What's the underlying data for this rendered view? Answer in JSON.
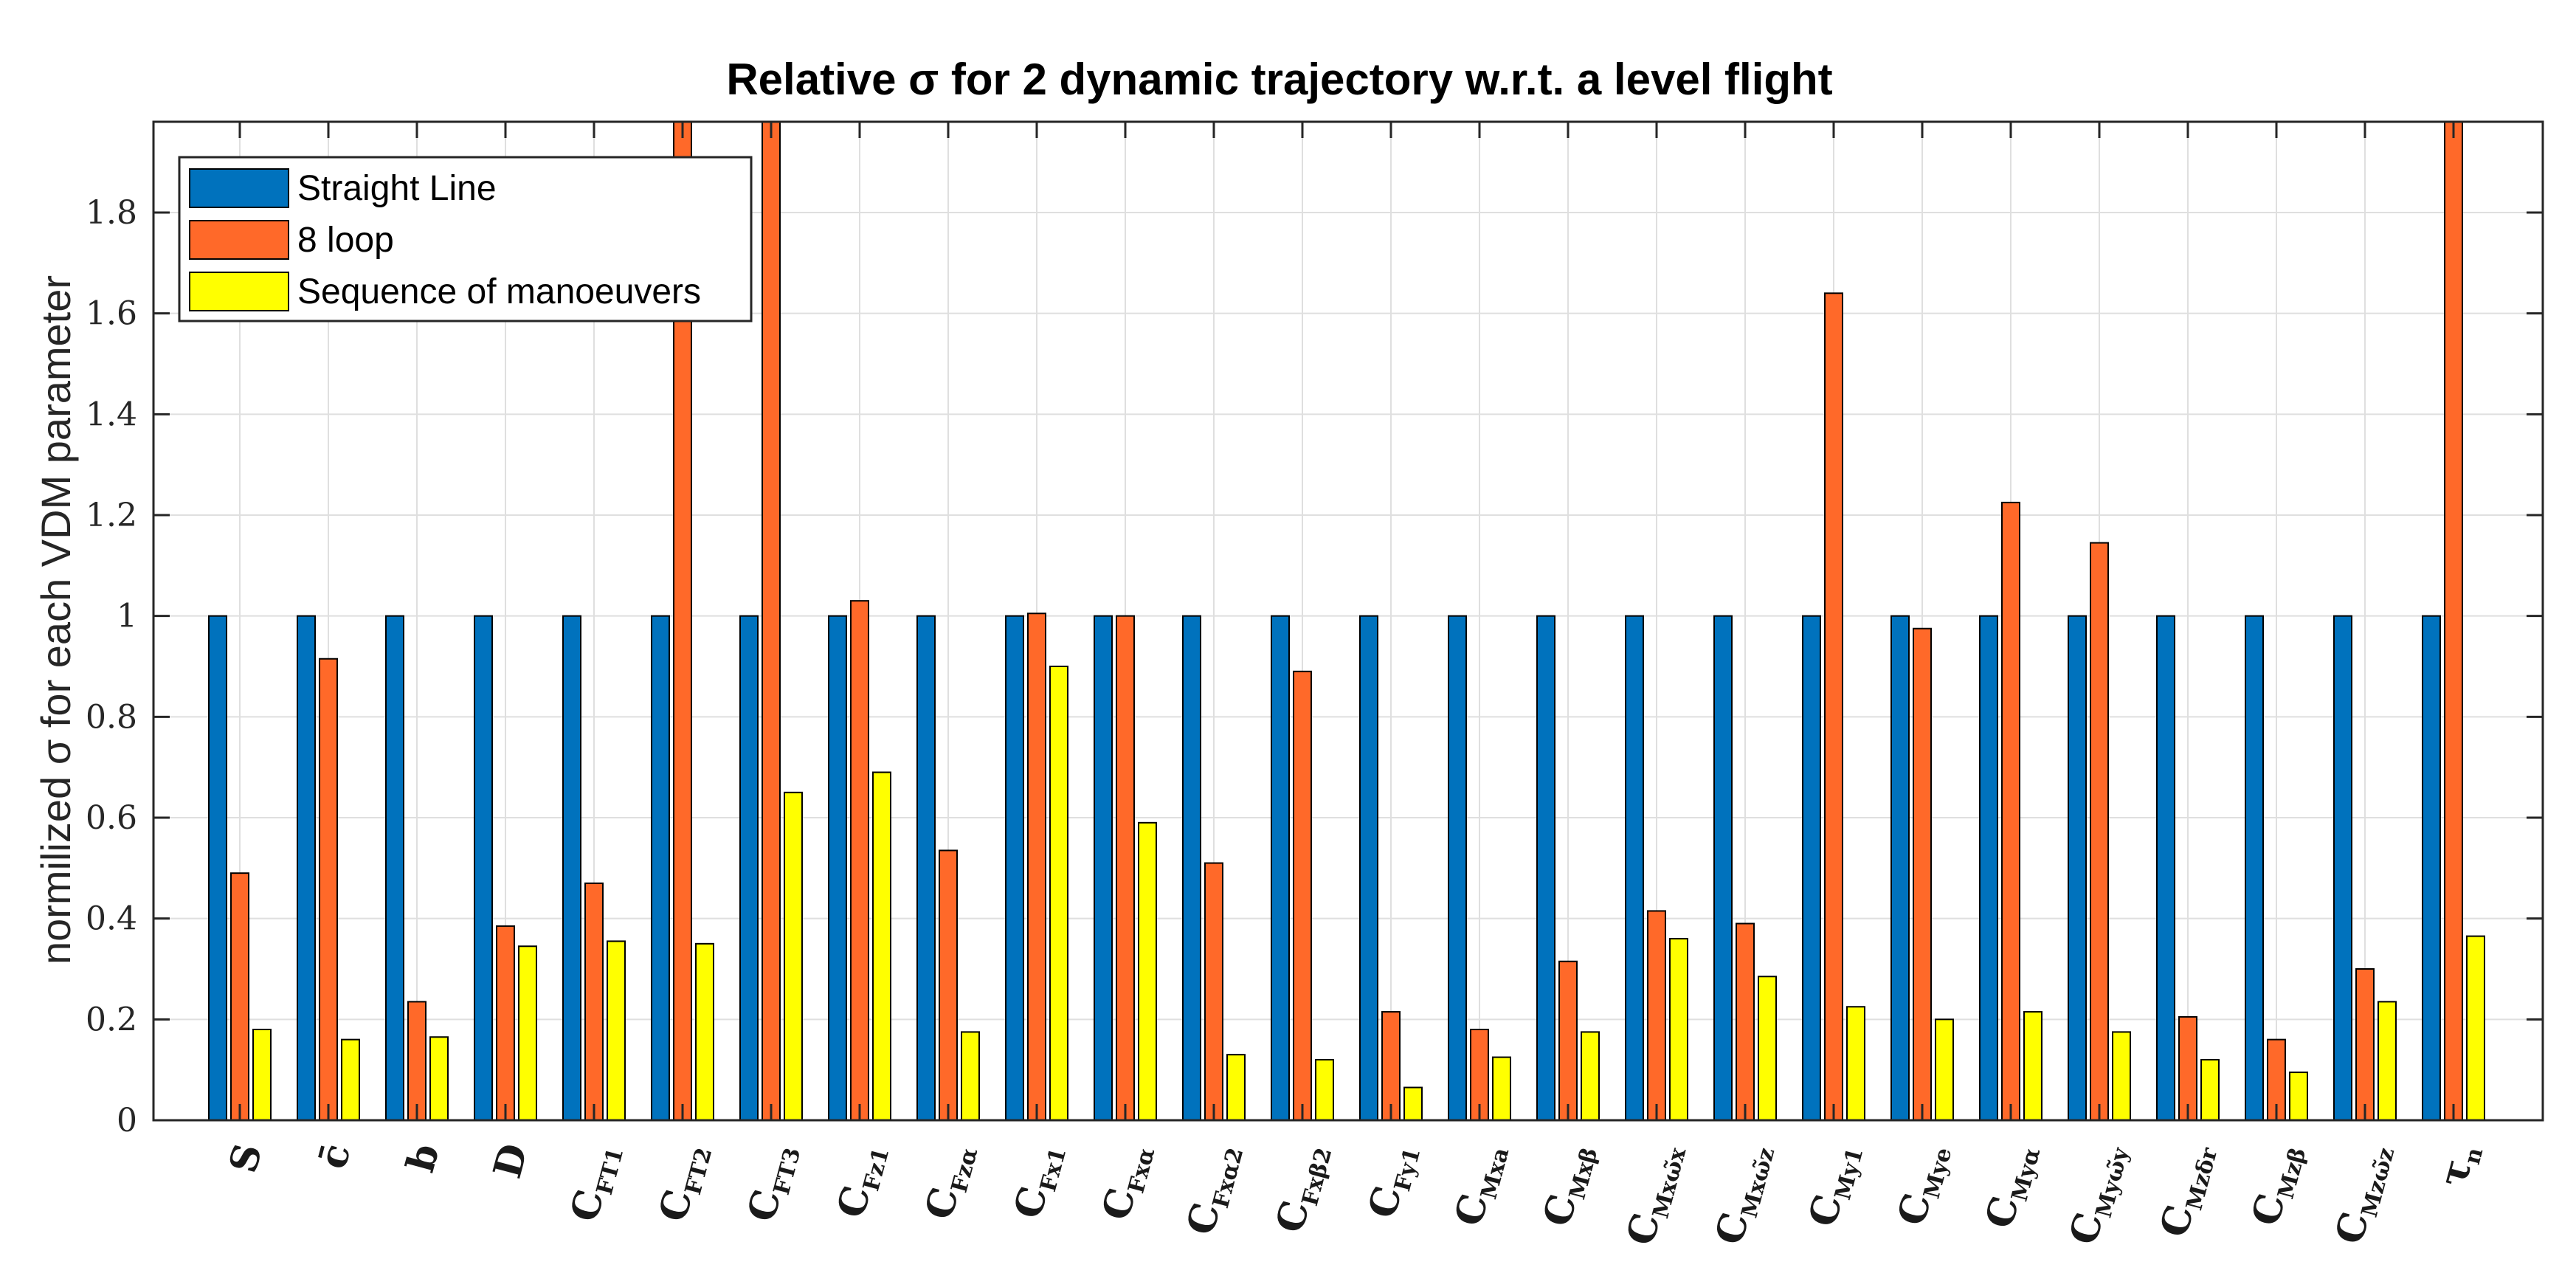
{
  "chart_data": {
    "type": "bar",
    "title": "Relative σ for 2 dynamic trajectory w.r.t. a level flight",
    "xlabel": "",
    "ylabel": "normilized σ for each VDM parameter",
    "ylim": [
      0,
      1.98
    ],
    "yticks": [
      0,
      0.2,
      0.4,
      0.6,
      0.8,
      1,
      1.2,
      1.4,
      1.6,
      1.8
    ],
    "ytick_labels": [
      "0",
      "0.2",
      "0.4",
      "0.6",
      "0.8",
      "1",
      "1.2",
      "1.4",
      "1.6",
      "1.8"
    ],
    "grid": true,
    "legend_position": "top-left",
    "categories": [
      {
        "main": "S",
        "sub": ""
      },
      {
        "main": "c̄",
        "sub": ""
      },
      {
        "main": "b",
        "sub": ""
      },
      {
        "main": "D",
        "sub": ""
      },
      {
        "main": "C",
        "sub": "FT1"
      },
      {
        "main": "C",
        "sub": "FT2"
      },
      {
        "main": "C",
        "sub": "FT3"
      },
      {
        "main": "C",
        "sub": "Fz1"
      },
      {
        "main": "C",
        "sub": "Fzα"
      },
      {
        "main": "C",
        "sub": "Fx1"
      },
      {
        "main": "C",
        "sub": "Fxα"
      },
      {
        "main": "C",
        "sub": "Fxα2"
      },
      {
        "main": "C",
        "sub": "Fxβ2"
      },
      {
        "main": "C",
        "sub": "Fy1"
      },
      {
        "main": "C",
        "sub": "Mxa"
      },
      {
        "main": "C",
        "sub": "Mxβ"
      },
      {
        "main": "C",
        "sub": "Mxω̃x"
      },
      {
        "main": "C",
        "sub": "Mxω̃z"
      },
      {
        "main": "C",
        "sub": "My1"
      },
      {
        "main": "C",
        "sub": "Mye"
      },
      {
        "main": "C",
        "sub": "Myα"
      },
      {
        "main": "C",
        "sub": "Myω̃y"
      },
      {
        "main": "C",
        "sub": "Mzδr"
      },
      {
        "main": "C",
        "sub": "Mzβ"
      },
      {
        "main": "C",
        "sub": "Mzω̃z"
      },
      {
        "main": "τ",
        "sub": "n"
      }
    ],
    "series": [
      {
        "name": "Straight Line",
        "color": "#0072BD",
        "values": [
          1,
          1,
          1,
          1,
          1,
          1,
          1,
          1,
          1,
          1,
          1,
          1,
          1,
          1,
          1,
          1,
          1,
          1,
          1,
          1,
          1,
          1,
          1,
          1,
          1,
          1
        ]
      },
      {
        "name": "8 loop",
        "color": "#FF6929",
        "values": [
          0.49,
          0.915,
          0.235,
          0.385,
          0.47,
          2.0,
          2.0,
          1.03,
          0.535,
          1.005,
          1.0,
          0.51,
          0.89,
          0.215,
          0.18,
          0.315,
          0.415,
          0.39,
          1.64,
          0.975,
          1.225,
          1.145,
          0.205,
          0.16,
          0.3,
          2.0
        ]
      },
      {
        "name": "Sequence of manoeuvers",
        "color": "#FFFF00",
        "values": [
          0.18,
          0.16,
          0.165,
          0.345,
          0.355,
          0.35,
          0.65,
          0.69,
          0.175,
          0.9,
          0.59,
          0.13,
          0.12,
          0.065,
          0.125,
          0.175,
          0.36,
          0.285,
          0.225,
          0.2,
          0.215,
          0.175,
          0.12,
          0.095,
          0.235,
          0.365
        ]
      }
    ]
  }
}
